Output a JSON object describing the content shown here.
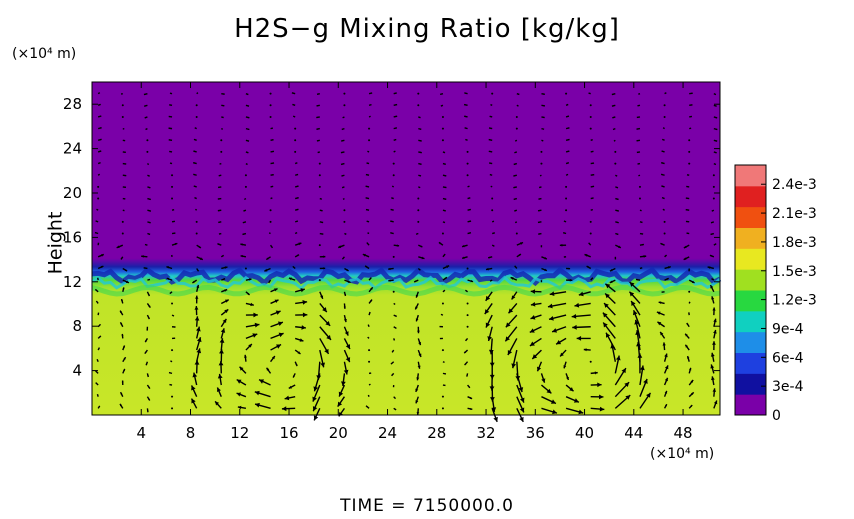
{
  "chart_data": {
    "type": "heatmap",
    "title": "H2S−g Mixing Ratio [kg/kg]",
    "ylabel": "Height",
    "x_unit_label": "(×10⁴ m)",
    "y_unit_label": "(×10⁴ m)",
    "footer": "TIME  =  7150000.0",
    "xlim": [
      0,
      51
    ],
    "ylim": [
      0,
      30
    ],
    "x_ticks": [
      4,
      8,
      12,
      16,
      20,
      24,
      28,
      32,
      36,
      40,
      44,
      48
    ],
    "y_ticks": [
      4,
      8,
      12,
      16,
      20,
      24,
      28
    ],
    "colorbar": {
      "min": 0,
      "max": 0.0026,
      "tick_values": [
        0,
        0.0003,
        0.0006,
        0.0009,
        0.0012,
        0.0015,
        0.0018,
        0.0021,
        0.0024
      ],
      "tick_labels": [
        "0",
        "3e-4",
        "6e-4",
        "9e-4",
        "1.2e-3",
        "1.5e-3",
        "1.8e-3",
        "2.1e-3",
        "2.4e-3"
      ],
      "colors": [
        "#7a00a8",
        "#1010a0",
        "#1e40e0",
        "#1e8ee8",
        "#10d0c0",
        "#28d840",
        "#a0e020",
        "#e8e820",
        "#f0b020",
        "#f05010",
        "#e02020",
        "#f07878"
      ]
    },
    "field": {
      "lower_layer_top": 12.5,
      "lower_layer_value": 0.0017,
      "transition_value": 0.0014,
      "upper_value": 0
    },
    "vortices": [
      {
        "x": 15,
        "y": 4.5,
        "radius": 4,
        "sense": "clockwise"
      },
      {
        "x": 39.5,
        "y": 4.5,
        "radius": 5,
        "sense": "counterclockwise"
      }
    ]
  }
}
